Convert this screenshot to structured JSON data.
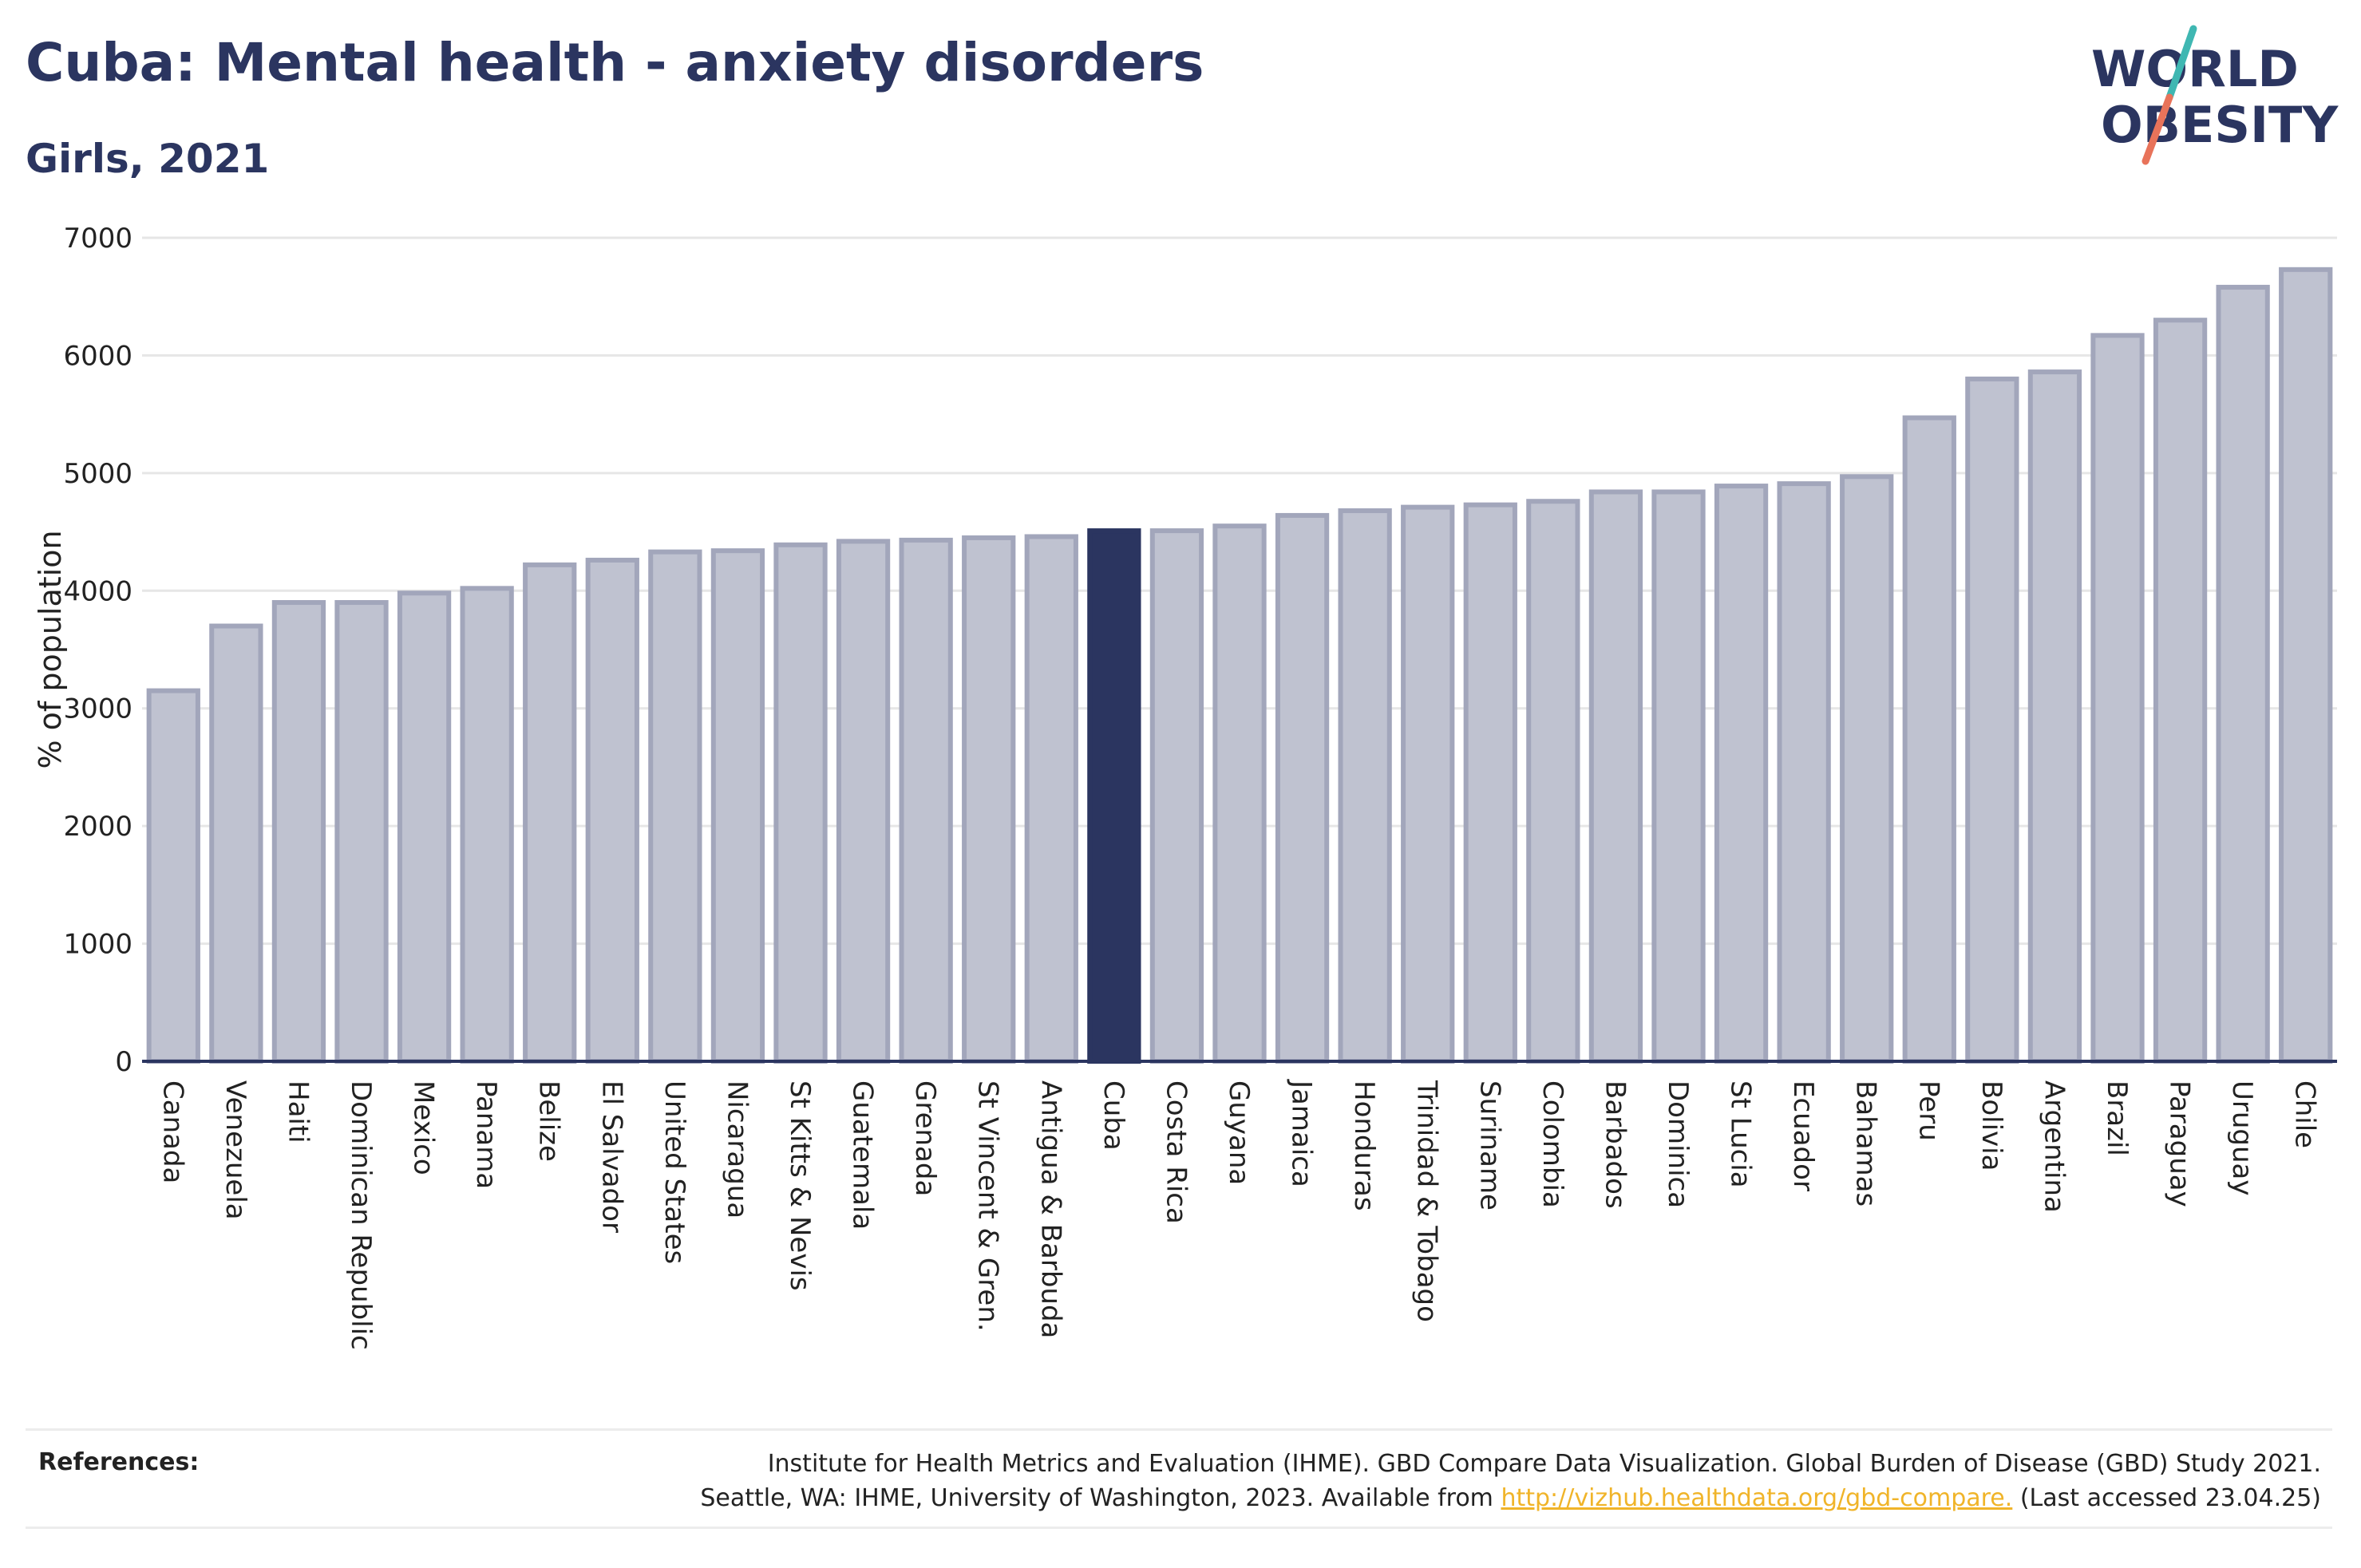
{
  "header": {
    "title": "Cuba: Mental health - anxiety disorders",
    "subtitle": "Girls, 2021"
  },
  "logo": {
    "line1": "WORLD",
    "line2": "OBESITY",
    "colors": {
      "text": "#2b3560",
      "accent_teal": "#3fb7b2",
      "accent_coral": "#e8735a"
    }
  },
  "references": {
    "label": "References:",
    "line1": "Institute for Health Metrics and Evaluation (IHME). GBD Compare Data Visualization. Global Burden of Disease (GBD) Study 2021.",
    "line2_before": "Seattle, WA: IHME, University of Washington, 2023. Available from ",
    "link": "http://vizhub.healthdata.org/gbd-compare.",
    "line2_after": " (Last accessed 23.04.25)"
  },
  "chart_data": {
    "type": "bar",
    "ylabel": "% of population",
    "xlabel": "",
    "ylim": [
      0,
      7000
    ],
    "yticks": [
      0,
      1000,
      2000,
      3000,
      4000,
      5000,
      6000,
      7000
    ],
    "grid": true,
    "highlight": "Cuba",
    "colors": {
      "bar": "#bfc2d0",
      "bar_edge": "#a2a6bb",
      "highlight": "#2b3560",
      "axis": "#2b3560",
      "grid": "#e6e6e6"
    },
    "categories": [
      "Canada",
      "Venezuela",
      "Haiti",
      "Dominican Republic",
      "Mexico",
      "Panama",
      "Belize",
      "El Salvador",
      "United States",
      "Nicaragua",
      "St Kitts & Nevis",
      "Guatemala",
      "Grenada",
      "St Vincent & Gren.",
      "Antigua & Barbuda",
      "Cuba",
      "Costa Rica",
      "Guyana",
      "Jamaica",
      "Honduras",
      "Trinidad & Tobago",
      "Suriname",
      "Colombia",
      "Barbados",
      "Dominica",
      "St Lucia",
      "Ecuador",
      "Bahamas",
      "Peru",
      "Bolivia",
      "Argentina",
      "Brazil",
      "Paraguay",
      "Uruguay",
      "Chile"
    ],
    "values": [
      3150,
      3700,
      3900,
      3900,
      3980,
      4020,
      4220,
      4260,
      4330,
      4340,
      4390,
      4420,
      4430,
      4450,
      4460,
      4510,
      4510,
      4550,
      4640,
      4680,
      4710,
      4730,
      4760,
      4840,
      4840,
      4890,
      4910,
      4970,
      5470,
      5800,
      5860,
      6170,
      6300,
      6580,
      6730
    ]
  }
}
